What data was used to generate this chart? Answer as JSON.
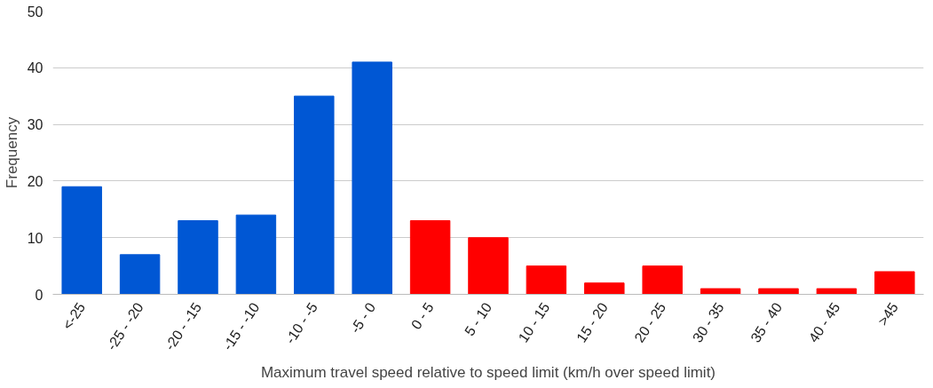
{
  "chart_data": {
    "type": "bar",
    "xlabel": "Maximum travel speed relative to speed limit (km/h over speed limit)",
    "ylabel": "Frequency",
    "categories": [
      "<-25",
      "-25 - -20",
      "-20 - -15",
      "-15 - -10",
      "-10 - -5",
      "-5 - 0",
      "0 - 5",
      "5 - 10",
      "10 - 15",
      "15 - 20",
      "20 - 25",
      "30 - 35",
      "35 - 40",
      "40 - 45",
      ">45"
    ],
    "values": [
      19,
      7,
      13,
      14,
      35,
      41,
      13,
      10,
      5,
      2,
      5,
      1,
      1,
      1,
      4
    ],
    "colors": [
      "#0057d4",
      "#0057d4",
      "#0057d4",
      "#0057d4",
      "#0057d4",
      "#0057d4",
      "#ff0000",
      "#ff0000",
      "#ff0000",
      "#ff0000",
      "#ff0000",
      "#ff0000",
      "#ff0000",
      "#ff0000",
      "#ff0000"
    ],
    "ylim": [
      0,
      50
    ],
    "yticks": [
      0,
      10,
      20,
      30,
      40,
      50
    ],
    "grid": "y"
  }
}
